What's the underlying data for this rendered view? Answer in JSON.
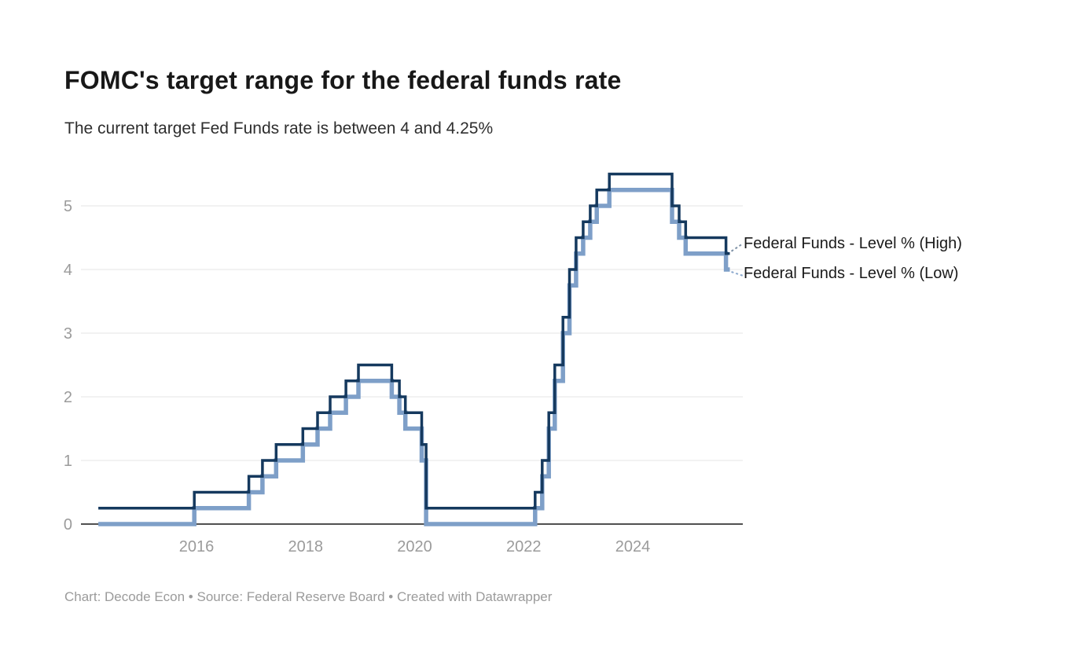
{
  "header": {
    "title": "FOMC's target range for the federal funds rate",
    "subtitle": "The current target Fed Funds rate is between 4 and 4.25%"
  },
  "footer": {
    "text": "Chart: Decode Econ • Source: Federal Reserve Board • Created with Datawrapper"
  },
  "colors": {
    "high_line": "#15395e",
    "low_line": "#7e9fc8",
    "axis_line": "#161616",
    "gridline": "#e4e4e4",
    "tick_label": "#9b9b9b",
    "label_text": "#1a1a1a"
  },
  "chart_data": {
    "type": "line",
    "step": true,
    "title": "FOMC's target range for the federal funds rate",
    "xlabel": "",
    "ylabel": "",
    "x_domain": [
      2013.881,
      2026.018
    ],
    "x_end": 2025.78,
    "ylim": [
      0,
      5.5
    ],
    "x_ticks": [
      2016,
      2018,
      2020,
      2022,
      2024
    ],
    "y_ticks": [
      0,
      1,
      2,
      3,
      4,
      5
    ],
    "grid": true,
    "legend_position": "right-of-line-end",
    "series": [
      {
        "name": "Federal Funds - Level % (Low)",
        "color": "#7e9fc8",
        "stroke_width": 5.5,
        "points": [
          [
            2014.2,
            0.0
          ],
          [
            2015.96,
            0.25
          ],
          [
            2016.96,
            0.5
          ],
          [
            2017.21,
            0.75
          ],
          [
            2017.46,
            1.0
          ],
          [
            2017.95,
            1.25
          ],
          [
            2018.22,
            1.5
          ],
          [
            2018.45,
            1.75
          ],
          [
            2018.74,
            2.0
          ],
          [
            2018.97,
            2.25
          ],
          [
            2019.58,
            2.0
          ],
          [
            2019.72,
            1.75
          ],
          [
            2019.83,
            1.5
          ],
          [
            2020.13,
            1.0
          ],
          [
            2020.21,
            0.0
          ],
          [
            2022.21,
            0.25
          ],
          [
            2022.34,
            0.75
          ],
          [
            2022.46,
            1.5
          ],
          [
            2022.57,
            2.25
          ],
          [
            2022.72,
            3.0
          ],
          [
            2022.84,
            3.75
          ],
          [
            2022.96,
            4.25
          ],
          [
            2023.09,
            4.5
          ],
          [
            2023.22,
            4.75
          ],
          [
            2023.34,
            5.0
          ],
          [
            2023.57,
            5.25
          ],
          [
            2024.72,
            4.75
          ],
          [
            2024.85,
            4.5
          ],
          [
            2024.97,
            4.25
          ],
          [
            2025.71,
            4.0
          ]
        ]
      },
      {
        "name": "Federal Funds - Level % (High)",
        "color": "#15395e",
        "stroke_width": 3.5,
        "points": [
          [
            2014.2,
            0.25
          ],
          [
            2015.96,
            0.5
          ],
          [
            2016.96,
            0.75
          ],
          [
            2017.21,
            1.0
          ],
          [
            2017.46,
            1.25
          ],
          [
            2017.95,
            1.5
          ],
          [
            2018.22,
            1.75
          ],
          [
            2018.45,
            2.0
          ],
          [
            2018.74,
            2.25
          ],
          [
            2018.97,
            2.5
          ],
          [
            2019.58,
            2.25
          ],
          [
            2019.72,
            2.0
          ],
          [
            2019.83,
            1.75
          ],
          [
            2020.13,
            1.25
          ],
          [
            2020.21,
            0.25
          ],
          [
            2022.21,
            0.5
          ],
          [
            2022.34,
            1.0
          ],
          [
            2022.46,
            1.75
          ],
          [
            2022.57,
            2.5
          ],
          [
            2022.72,
            3.25
          ],
          [
            2022.84,
            4.0
          ],
          [
            2022.96,
            4.5
          ],
          [
            2023.09,
            4.75
          ],
          [
            2023.22,
            5.0
          ],
          [
            2023.34,
            5.25
          ],
          [
            2023.57,
            5.5
          ],
          [
            2024.72,
            5.0
          ],
          [
            2024.85,
            4.75
          ],
          [
            2024.97,
            4.5
          ],
          [
            2025.71,
            4.25
          ]
        ]
      }
    ]
  }
}
